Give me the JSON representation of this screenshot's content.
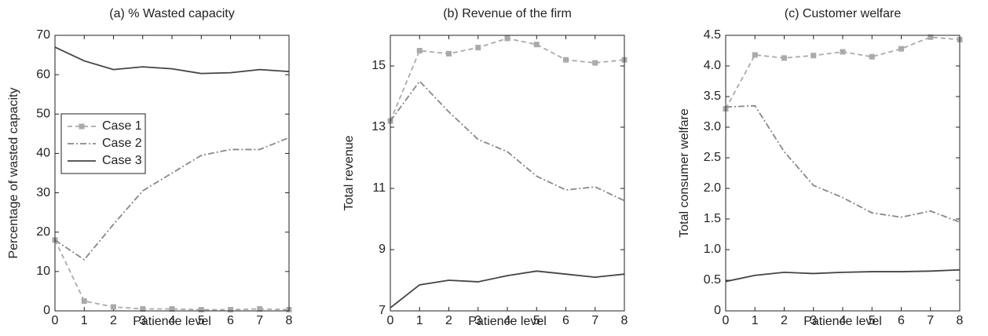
{
  "chart_data": [
    {
      "type": "line",
      "title": "(a) % Wasted capacity",
      "xlabel": "Patience level",
      "ylabel": "Percentage of wasted capacity",
      "x": [
        0,
        1,
        2,
        3,
        4,
        5,
        6,
        7,
        8
      ],
      "xlim": [
        0,
        8
      ],
      "xticks": [
        0,
        1,
        2,
        3,
        4,
        5,
        6,
        7,
        8
      ],
      "ylim": [
        0,
        70
      ],
      "yticks": [
        0,
        10,
        20,
        30,
        40,
        50,
        60,
        70
      ],
      "legend": "upper left",
      "series": [
        {
          "name": "Case 1",
          "color": "#aaaaaa",
          "dash": "dashed",
          "marker": "square",
          "values": [
            18,
            2.5,
            1,
            0.5,
            0.5,
            0.3,
            0.3,
            0.5,
            0.3
          ]
        },
        {
          "name": "Case 2",
          "color": "#888888",
          "dash": "dashdot",
          "marker": "none",
          "values": [
            18,
            13,
            22,
            30.5,
            35,
            39.5,
            41,
            41,
            44
          ]
        },
        {
          "name": "Case 3",
          "color": "#444444",
          "dash": "solid",
          "marker": "none",
          "values": [
            67,
            63.5,
            61.3,
            62,
            61.5,
            60.3,
            60.5,
            61.3,
            60.8
          ]
        }
      ]
    },
    {
      "type": "line",
      "title": "(b) Revenue of the firm",
      "xlabel": "Patience level",
      "ylabel": "Total revenue",
      "x": [
        0,
        1,
        2,
        3,
        4,
        5,
        6,
        7,
        8
      ],
      "xlim": [
        0,
        8
      ],
      "xticks": [
        0,
        1,
        2,
        3,
        4,
        5,
        6,
        7,
        8
      ],
      "ylim": [
        7,
        16
      ],
      "yticks": [
        7,
        9,
        11,
        13,
        15
      ],
      "series": [
        {
          "name": "Case 1",
          "color": "#aaaaaa",
          "dash": "dashed",
          "marker": "square",
          "values": [
            13.2,
            15.5,
            15.4,
            15.6,
            15.9,
            15.7,
            15.2,
            15.1,
            15.2
          ]
        },
        {
          "name": "Case 2",
          "color": "#888888",
          "dash": "dashdot",
          "marker": "none",
          "values": [
            13.2,
            14.5,
            13.5,
            12.6,
            12.2,
            11.4,
            10.95,
            11.05,
            10.6
          ]
        },
        {
          "name": "Case 3",
          "color": "#444444",
          "dash": "solid",
          "marker": "none",
          "values": [
            7.1,
            7.85,
            8.0,
            7.95,
            8.15,
            8.3,
            8.2,
            8.1,
            8.2
          ]
        }
      ]
    },
    {
      "type": "line",
      "title": "(c) Customer welfare",
      "xlabel": "Patience level",
      "ylabel": "Total consumer welfare",
      "x": [
        0,
        1,
        2,
        3,
        4,
        5,
        6,
        7,
        8
      ],
      "xlim": [
        0,
        8
      ],
      "xticks": [
        0,
        1,
        2,
        3,
        4,
        5,
        6,
        7,
        8
      ],
      "ylim": [
        0,
        4.5
      ],
      "yticks": [
        0,
        0.5,
        {
          "value": 1,
          "label": "1.0"
        },
        1.5,
        {
          "value": 2,
          "label": "2.0"
        },
        2.5,
        {
          "value": 3,
          "label": "3.0"
        },
        3.5,
        {
          "value": 4,
          "label": "4.0"
        },
        4.5
      ],
      "series": [
        {
          "name": "Case 1",
          "color": "#aaaaaa",
          "dash": "dashed",
          "marker": "square",
          "values": [
            3.3,
            4.18,
            4.13,
            4.17,
            4.23,
            4.15,
            4.28,
            4.47,
            4.43
          ]
        },
        {
          "name": "Case 2",
          "color": "#888888",
          "dash": "dashdot",
          "marker": "none",
          "values": [
            3.33,
            3.35,
            2.6,
            2.05,
            1.85,
            1.6,
            1.53,
            1.63,
            1.45
          ]
        },
        {
          "name": "Case 3",
          "color": "#444444",
          "dash": "solid",
          "marker": "none",
          "values": [
            0.48,
            0.58,
            0.63,
            0.61,
            0.63,
            0.64,
            0.64,
            0.65,
            0.67
          ]
        }
      ]
    }
  ]
}
